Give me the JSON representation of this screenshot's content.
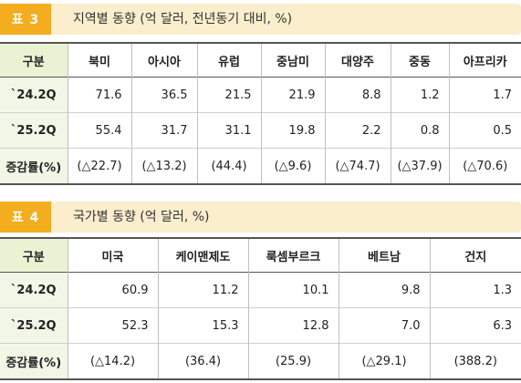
{
  "table3": {
    "badge": "표 3",
    "title": "지역별 동향 (억 달러, 전년동기 대비, %)",
    "headers": [
      "구분",
      "북미",
      "아시아",
      "유럽",
      "중남미",
      "대양주",
      "중동",
      "아프리카"
    ],
    "rows": [
      [
        "`24.2Q",
        "71.6",
        "36.5",
        "21.5",
        "21.9",
        "8.8",
        "1.2",
        "1.7"
      ],
      [
        "`25.2Q",
        "55.4",
        "31.7",
        "31.1",
        "19.8",
        "2.2",
        "0.8",
        "0.5"
      ],
      [
        "증감률(%)",
        "(△22.7)",
        "(△13.2)",
        "(44.4)",
        "(△9.6)",
        "(△74.7)",
        "(△37.9)",
        "(△70.6)"
      ]
    ]
  },
  "table4": {
    "badge": "표 4",
    "title": "국가별 동향 (억 달러, %)",
    "headers": [
      "구분",
      "미국",
      "케이맨제도",
      "룩셈부르크",
      "베트남",
      "건지"
    ],
    "rows": [
      [
        "`24.2Q",
        "60.9",
        "11.2",
        "10.1",
        "9.8",
        "1.3"
      ],
      [
        "`25.2Q",
        "52.3",
        "15.3",
        "12.8",
        "7.0",
        "6.3"
      ],
      [
        "증감률(%)",
        "(△14.2)",
        "(36.4)",
        "(25.9)",
        "(△29.1)",
        "(388.2)"
      ]
    ]
  },
  "colors": {
    "badge": "#f3ad1e",
    "header_band": "#fbeecd",
    "stub_header": "#eaf2d4",
    "stub_cell": "#f2f6e6"
  }
}
